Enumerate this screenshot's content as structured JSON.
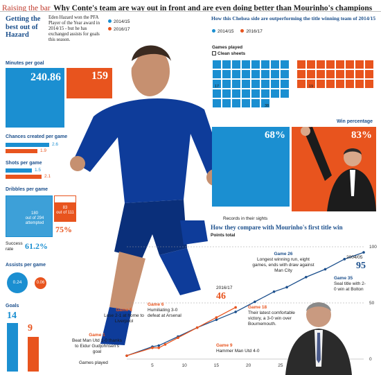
{
  "header": {
    "kicker": "Raising the bar",
    "headline": "Why Conte's team are way out in front and are even doing better than Mourinho's champions"
  },
  "colors": {
    "blue": "#1b8fd1",
    "orange": "#e8541e",
    "dark": "#1b4f8c"
  },
  "intro": {
    "title": "Getting the best out of Hazard",
    "text": "Eden Hazard won the PFA Player of the Year award in 2014/15 - but he has exchanged assists for goals this season."
  },
  "legend": {
    "a": "2014/15",
    "b": "2016/17"
  },
  "stats": {
    "minutes": {
      "label": "Minutes per goal",
      "a": "240.86",
      "b": "159"
    },
    "chances": {
      "label": "Chances created per game",
      "a": "2.6",
      "b": "1.9"
    },
    "shots": {
      "label": "Shots per game",
      "a": "1.5",
      "b": "2.1"
    },
    "dribbles": {
      "label": "Dribbles per game",
      "a": "180",
      "a_note": "out of 294 attempted",
      "b": "83",
      "b_note": "out of 111",
      "success_label": "Success rate",
      "a_rate": "61.2%",
      "b_rate": "75%"
    },
    "assists": {
      "label": "Assists per game",
      "a": "0.24",
      "b": "0.06"
    },
    "goals": {
      "label": "Goals",
      "a": "14",
      "b": "9"
    }
  },
  "comparison": {
    "title": "How this Chelsea side are outperforming the title winning team of 2014/15",
    "games_label": "Games played",
    "clean_label": "Clean sheets",
    "blue_clean": "17",
    "blue_total": "38",
    "orange_clean": "19",
    "win_label": "Win percentage",
    "win_a": "68%",
    "win_b": "83%",
    "records_label": "Records in their sights"
  },
  "chart": {
    "title": "How they compare with Mourinho's first title win",
    "subtitle": "Points total",
    "season_a": "2004/05",
    "season_a_pts": "95",
    "season_b": "2016/17",
    "season_b_pts": "46",
    "xlabel": "Games played",
    "annotations": [
      {
        "game": "Game 1",
        "text": "Beat Man Utd 1-0 thanks to Eidur Gudjohnsen's goal"
      },
      {
        "game": "Game 5",
        "text": "Lose 2-1 at home to Liverpool"
      },
      {
        "game": "Game 6",
        "text": "Humiliating 3-0 defeat at Arsenal"
      },
      {
        "game": "Game 9",
        "text": "Hammer Man Utd 4-0"
      },
      {
        "game": "Game 18",
        "text": "Their latest comfortable victory, a 3-0 win over Bournemouth."
      },
      {
        "game": "Game 26",
        "text": "Longest winning run, eight games, ends with draw against Man City"
      },
      {
        "game": "Game 35",
        "text": "Seal title with 2-0 win at Bolton"
      }
    ]
  },
  "chart_data": {
    "type": "line",
    "title": "How they compare with Mourinho's first title win",
    "ylabel": "Points total",
    "xlabel": "Games played",
    "xlim": [
      1,
      38
    ],
    "ylim": [
      0,
      100
    ],
    "xticks": [
      5,
      10,
      15,
      20,
      25
    ],
    "yticks": [
      0,
      50,
      100
    ],
    "series": [
      {
        "name": "2004/05",
        "x": [
          1,
          5,
          6,
          9,
          12,
          15,
          18,
          21,
          24,
          26,
          29,
          32,
          35,
          38
        ],
        "y": [
          3,
          11,
          12,
          20,
          28,
          35,
          42,
          51,
          60,
          64,
          73,
          80,
          89,
          95
        ]
      },
      {
        "name": "2016/17",
        "x": [
          1,
          5,
          6,
          7,
          9,
          12,
          15,
          18
        ],
        "y": [
          3,
          10,
          10,
          13,
          19,
          28,
          37,
          46
        ]
      }
    ]
  }
}
